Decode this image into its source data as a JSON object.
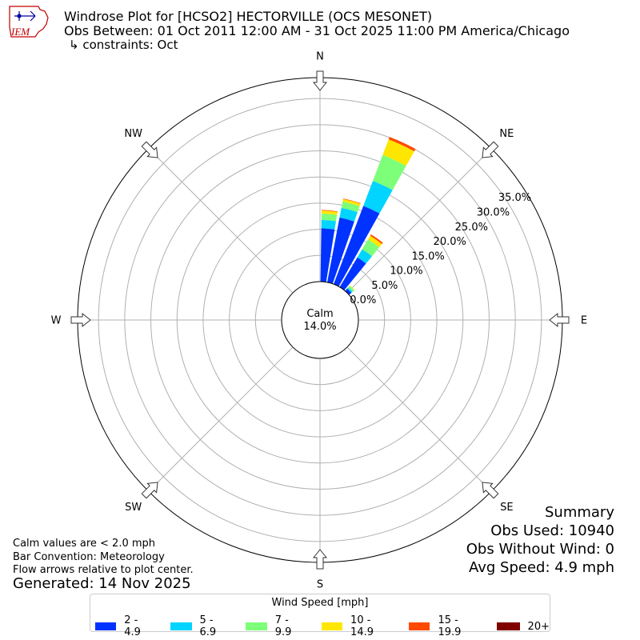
{
  "header": {
    "logo_text": "IEM",
    "title_line1": "Windrose Plot for [HCSO2] HECTORVILLE (OCS MESONET)",
    "title_line2": "Obs Between: 01 Oct 2011 12:00 AM - 31 Oct 2025 11:00 PM America/Chicago",
    "title_line3": "↳ constraints: Oct"
  },
  "summary": {
    "heading": "Summary",
    "obs_used": "Obs Used: 10940",
    "obs_without_wind": "Obs Without Wind: 0",
    "avg_speed": "Avg Speed: 4.9 mph"
  },
  "notes": {
    "calm_note": "Calm values are < 2.0 mph",
    "bar_convention": "Bar Convention: Meteorology",
    "flow_arrows": "Flow arrows relative to plot center."
  },
  "generated": "Generated: 14 Nov 2025",
  "legend": {
    "title": "Wind Speed [mph]",
    "items": [
      {
        "label": "2 - 4.9",
        "color": "#0033ff"
      },
      {
        "label": "5 - 6.9",
        "color": "#00d4ff"
      },
      {
        "label": "7 - 9.9",
        "color": "#7dff7a"
      },
      {
        "label": "10 - 14.9",
        "color": "#ffe600"
      },
      {
        "label": "15 - 19.9",
        "color": "#ff4a00"
      },
      {
        "label": "20+",
        "color": "#800000"
      }
    ]
  },
  "chart_data": {
    "type": "windrose",
    "calm_label": "Calm",
    "calm_value": "14.0%",
    "radial_ticks": [
      "0.0%",
      "5.0%",
      "10.0%",
      "15.0%",
      "20.0%",
      "25.0%",
      "30.0%",
      "35.0%"
    ],
    "radial_tick_values": [
      0,
      5,
      10,
      15,
      20,
      25,
      30,
      35
    ],
    "radial_max": 39,
    "compass_labels": [
      {
        "label": "N",
        "deg": 0
      },
      {
        "label": "NE",
        "deg": 45
      },
      {
        "label": "E",
        "deg": 90
      },
      {
        "label": "SE",
        "deg": 135
      },
      {
        "label": "S",
        "deg": 180
      },
      {
        "label": "SW",
        "deg": 225
      },
      {
        "label": "W",
        "deg": 270
      },
      {
        "label": "NW",
        "deg": 315
      }
    ],
    "speed_bins": [
      "2 - 4.9",
      "5 - 6.9",
      "7 - 9.9",
      "10 - 14.9",
      "15 - 19.9",
      "20+"
    ],
    "bin_colors": [
      "#0033ff",
      "#00d4ff",
      "#7dff7a",
      "#ffe600",
      "#ff4a00",
      "#800000"
    ],
    "sectors": [
      {
        "direction_deg": 5,
        "values": [
          10.2,
          1.6,
          1.2,
          0.6,
          0.1,
          0
        ]
      },
      {
        "direction_deg": 15,
        "values": [
          12.6,
          1.9,
          1.2,
          0.5,
          0.1,
          0
        ]
      },
      {
        "direction_deg": 25,
        "values": [
          16.0,
          5.1,
          5.3,
          3.2,
          0.5,
          0
        ]
      },
      {
        "direction_deg": 35,
        "values": [
          6.6,
          1.8,
          2.2,
          0.8,
          0.3,
          0
        ]
      },
      {
        "direction_deg": 45,
        "values": [
          0.6,
          0.3,
          0.4,
          0.1,
          0,
          0
        ]
      }
    ]
  }
}
